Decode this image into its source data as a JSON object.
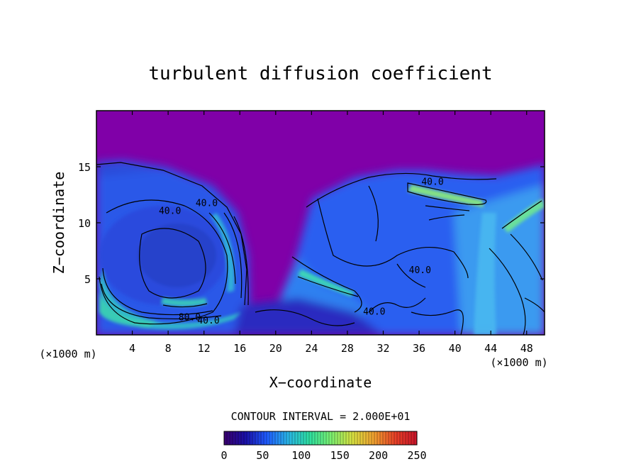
{
  "chart_data": {
    "type": "heatmap",
    "title": "turbulent diffusion coefficient",
    "xlabel": "X−coordinate",
    "ylabel": "Z−coordinate",
    "x_unit_left": "(×1000 m)",
    "x_unit_right": "(×1000 m)",
    "xlim": [
      0,
      50
    ],
    "ylim": [
      0,
      20
    ],
    "x_ticks": [
      4,
      8,
      12,
      16,
      20,
      24,
      28,
      32,
      36,
      40,
      44,
      48
    ],
    "y_ticks": [
      5,
      10,
      15
    ],
    "contour_labels": [
      {
        "text": "40.0",
        "x": 8.2,
        "y": 10.8
      },
      {
        "text": "40.0",
        "x": 12.3,
        "y": 11.5
      },
      {
        "text": "80.0",
        "x": 10.4,
        "y": 1.3
      },
      {
        "text": "40.0",
        "x": 12.5,
        "y": 1.0
      },
      {
        "text": "40.0",
        "x": 37.5,
        "y": 13.4
      },
      {
        "text": "40.0",
        "x": 31.0,
        "y": 1.8
      },
      {
        "text": "40.0",
        "x": 36.1,
        "y": 5.5
      }
    ],
    "contour_interval_label": "CONTOUR INTERVAL = 2.000E+01",
    "colorbar": {
      "min": 0,
      "max": 250,
      "ticks": [
        0,
        50,
        100,
        150,
        200,
        250
      ],
      "colors": [
        "#3a006e",
        "#1a10a8",
        "#1f5cff",
        "#2ab6e6",
        "#2ee0a0",
        "#7cf070",
        "#d8e040",
        "#f0a030",
        "#e84028",
        "#c8142a"
      ]
    },
    "colors": {
      "background_field": "#8000a8",
      "low": "#2a1aa0",
      "mid": "#2a66f2",
      "high": "#34d8b8",
      "peak": "#9af070"
    }
  }
}
